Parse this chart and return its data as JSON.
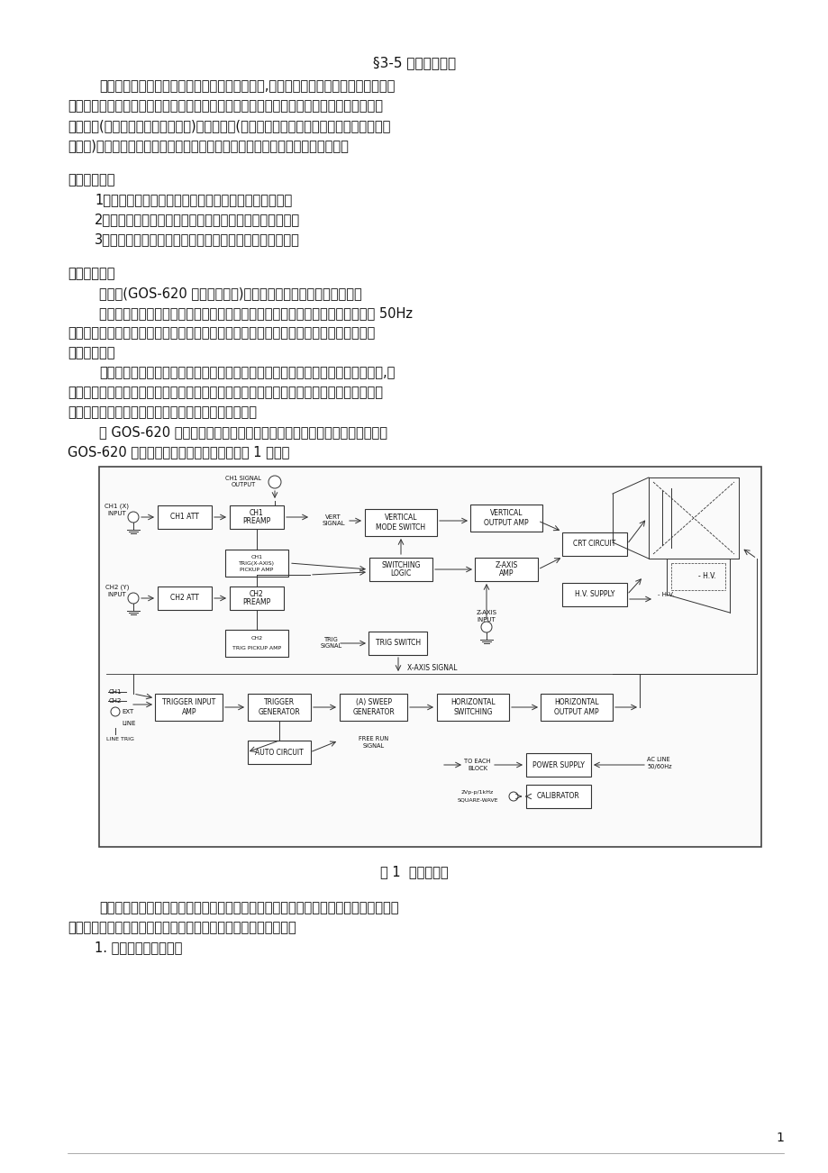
{
  "bg": "#ffffff",
  "text_color": "#111111",
  "title": "§3-5 示波器的使用",
  "body1": "阴极射线示波器是一种用途较为广泛的电子仪器,它可以把原来肉眼看不见的电压变化",
  "body2": "变换成可见的图像，以供人们分析研究。示波器可用来测量电压的大小和一切可转换为电压",
  "body3": "的电学量(如电流、电功率、阻抗等)和非电学量(如位移、速度、压力、频率、温度、磁场、",
  "body4": "光强等)。在无线电制造工业和电子测量技术等领域，它是不可缺少的测试设备。",
  "sec1": "一、实验目的",
  "num1": "1．了解示波器的基本结构，熏悉示波器的调节和使用。",
  "num2": "2．学习用示波器观察电压波形及测量信号的电压和周期。",
  "num3": "3．通过观察李萨如图形，学会用示波器测量频率的方法。",
  "sec2": "二、实验仪器",
  "inst1": "示波器(GOS-620 双轨迹示波器)、函数信号发生器、波形整流仪。",
  "inst2": "函数信号发生器的作用是产生各种波形、频率的电信号。整流波形仪的功能是将 50Hz",
  "inst3": "的照明电变成脉动直流电以及稳恒直流电。这些仪器的面板图请参见本实验的附录部分。",
  "sec3": "三、实验原理",
  "prin1": "示波器动态显示物理量随时间变化的思路是将这些物理量转换成随时间变化的电压,加",
  "prin2": "在电极板上，极板间形成相应的变化的电场，使进入这个变化电场的电子运动情况相应的随",
  "prin3": "时间变化，最后把电子运动的轨迹用荧光屏显示出来。",
  "prin4": "以 GOS-620 双轨迹示波器为例介绍示波器的基本结构和显示波形的原理。",
  "prin5": "GOS-620 双轨迹示波器的基本结构原理如图 1 所示。",
  "fig_cap": "图 1  示波器原理",
  "bot1": "电子示波器主要由四大部分组成：阴极射线示波器系统；扫描、触发系统；放大系统；",
  "bot2": "电源系统。下面主要介绍与示波器显示波形原理相关的几个部分。",
  "bot3": "1. 示波管的内部结构。",
  "page_num": "1"
}
